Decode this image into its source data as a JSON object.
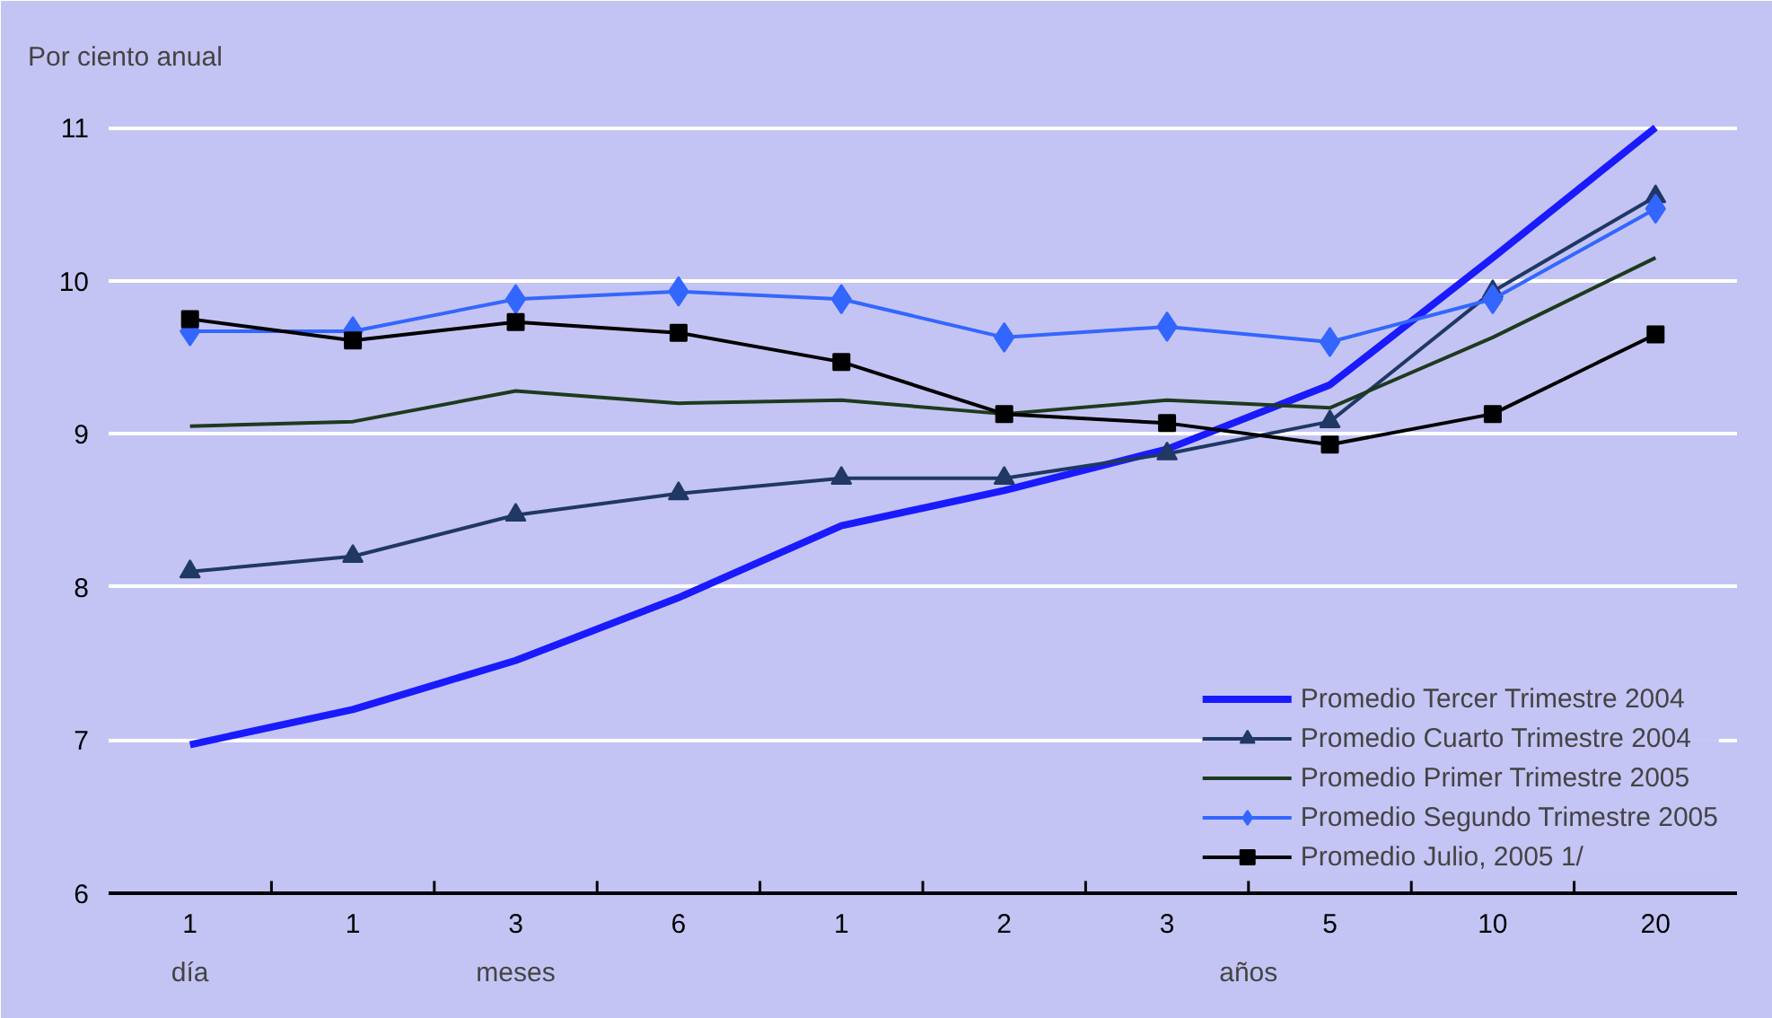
{
  "chart_data": {
    "type": "line",
    "ylabel": "Por ciento anual",
    "categories": [
      "1",
      "1",
      "3",
      "6",
      "1",
      "2",
      "3",
      "5",
      "10",
      "20"
    ],
    "annotations": [
      "día",
      "meses",
      "años"
    ],
    "ylim": [
      6,
      11.3
    ],
    "yticks": [
      6,
      7,
      8,
      9,
      10,
      11
    ],
    "grid": "y",
    "legend": "bottom right",
    "series": [
      {
        "name": "Promedio Tercer Trimestre 2004",
        "color": "#1a1aff",
        "marker": "none",
        "values": [
          6.97,
          7.2,
          7.52,
          7.93,
          8.4,
          8.63,
          8.9,
          9.32,
          10.15,
          11.0
        ]
      },
      {
        "name": "Promedio Cuarto Trimestre 2004",
        "color": "#1f3864",
        "marker": "triangle",
        "values": [
          8.1,
          8.2,
          8.47,
          8.61,
          8.71,
          8.71,
          8.87,
          9.08,
          9.93,
          10.55
        ]
      },
      {
        "name": "Promedio Primer Trimestre 2005",
        "color": "#1e3a1e",
        "marker": "none",
        "values": [
          9.05,
          9.08,
          9.28,
          9.2,
          9.22,
          9.13,
          9.22,
          9.17,
          9.63,
          10.15
        ]
      },
      {
        "name": "Promedio Segundo Trimestre 2005",
        "color": "#3366ff",
        "marker": "diamond",
        "values": [
          9.67,
          9.67,
          9.88,
          9.93,
          9.88,
          9.63,
          9.7,
          9.6,
          9.88,
          10.47
        ]
      },
      {
        "name": "Promedio Julio, 2005 1/",
        "color": "#000000",
        "marker": "square",
        "values": [
          9.75,
          9.61,
          9.73,
          9.66,
          9.47,
          9.13,
          9.07,
          8.93,
          9.13,
          9.65
        ]
      }
    ]
  }
}
